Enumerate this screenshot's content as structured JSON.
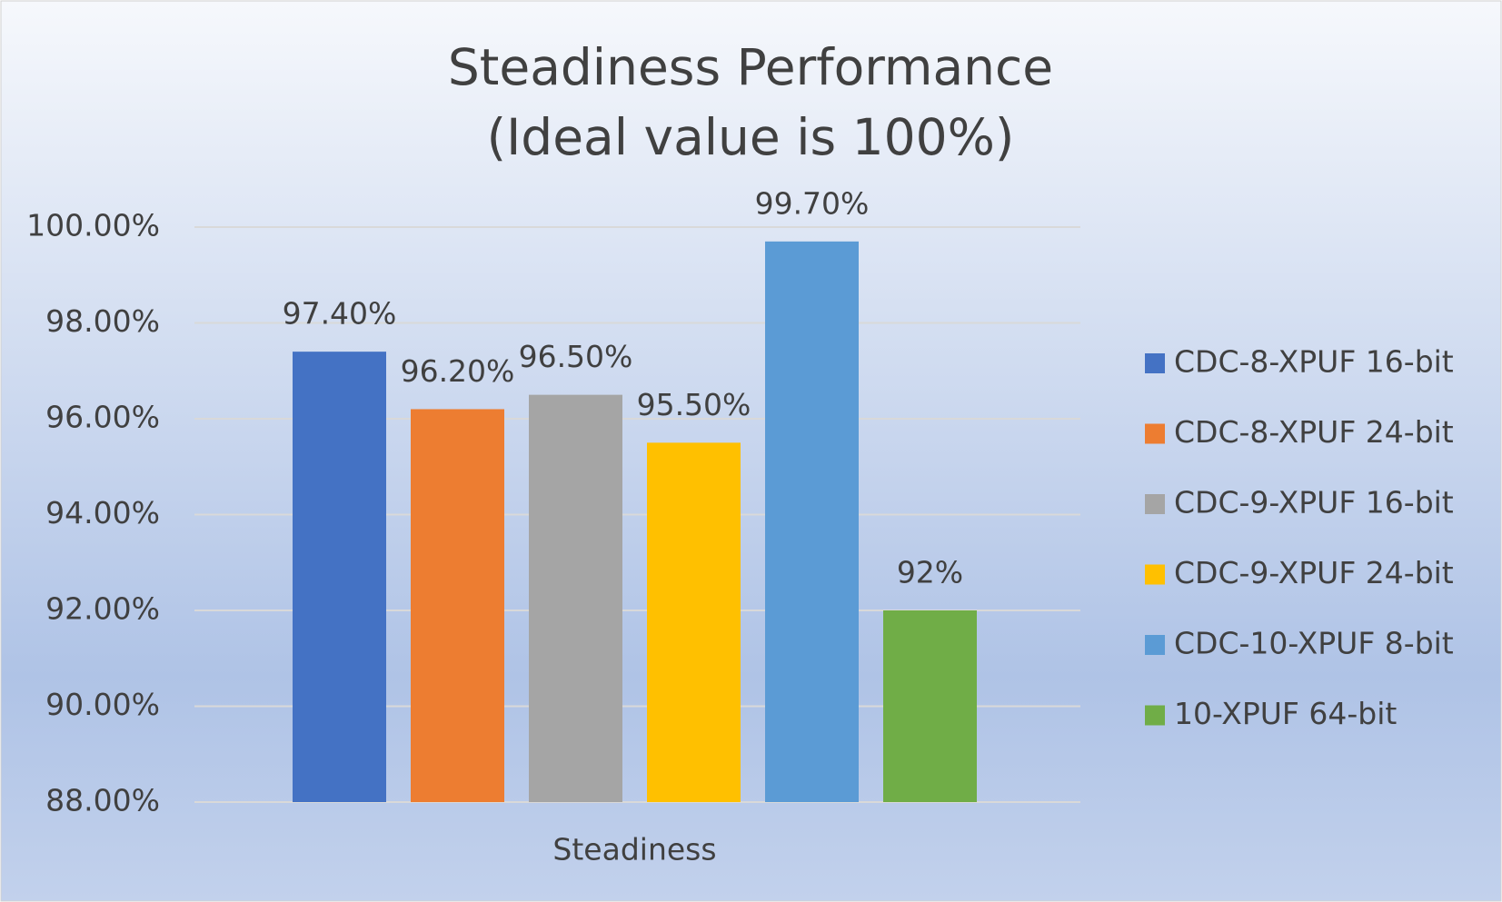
{
  "chart_data": {
    "type": "bar",
    "title": [
      "Steadiness Performance",
      "(Ideal value is 100%)"
    ],
    "categories": [
      "Steadiness"
    ],
    "series": [
      {
        "name": "CDC-8-XPUF 16-bit",
        "color": "#4472c4",
        "values": [
          97.4
        ],
        "value_labels": [
          "97.40%"
        ]
      },
      {
        "name": "CDC-8-XPUF 24-bit",
        "color": "#ed7d31",
        "values": [
          96.2
        ],
        "value_labels": [
          "96.20%"
        ]
      },
      {
        "name": "CDC-9-XPUF 16-bit",
        "color": "#a5a5a5",
        "values": [
          96.5
        ],
        "value_labels": [
          "96.50%"
        ]
      },
      {
        "name": "CDC-9-XPUF 24-bit",
        "color": "#ffc000",
        "values": [
          95.5
        ],
        "value_labels": [
          "95.50%"
        ]
      },
      {
        "name": "CDC-10-XPUF 8-bit",
        "color": "#5b9bd5",
        "values": [
          99.7
        ],
        "value_labels": [
          "99.70%"
        ]
      },
      {
        "name": "10-XPUF 64-bit",
        "color": "#70ad47",
        "values": [
          92
        ],
        "value_labels": [
          "92%"
        ]
      }
    ],
    "ylim": [
      88,
      100
    ],
    "yticks": [
      {
        "value": 88,
        "label": "88.00%"
      },
      {
        "value": 90,
        "label": "90.00%"
      },
      {
        "value": 92,
        "label": "92.00%"
      },
      {
        "value": 94,
        "label": "94.00%"
      },
      {
        "value": 96,
        "label": "96.00%"
      },
      {
        "value": 98,
        "label": "98.00%"
      },
      {
        "value": 100,
        "label": "100.00%"
      }
    ],
    "grid": true,
    "legend": "right"
  }
}
